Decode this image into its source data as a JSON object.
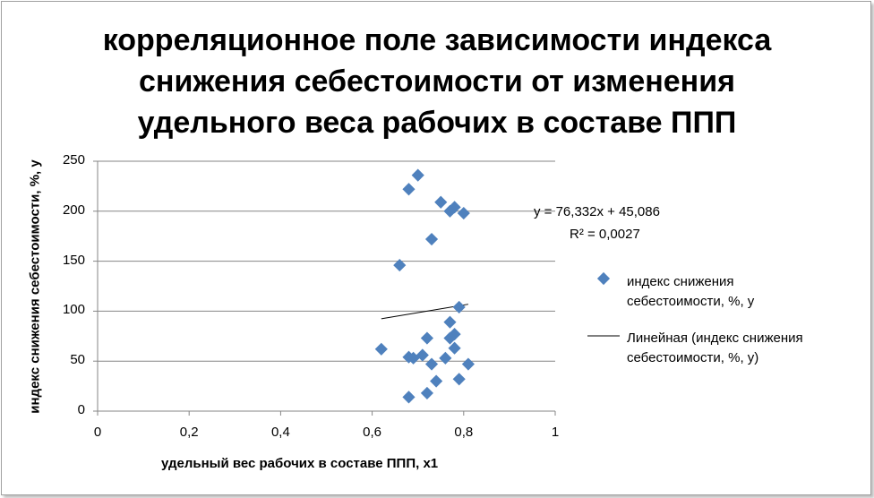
{
  "chart_data": {
    "type": "scatter",
    "title": "корреляционное поле зависимости индекса\nснижения себестоимости от изменения\nудельного веса рабочих в составе ППП",
    "xlabel": "удельный вес рабочих в составе ППП, х1",
    "ylabel": "индекс снижения себестоимости, %,  у",
    "xlim": [
      0,
      1
    ],
    "ylim": [
      0,
      250
    ],
    "x_ticks": [
      "0",
      "0,2",
      "0,4",
      "0,6",
      "0,8",
      "1"
    ],
    "y_ticks": [
      "0",
      "50",
      "100",
      "150",
      "200",
      "250"
    ],
    "grid": "horizontal",
    "legend_position": "right",
    "series": [
      {
        "name": "индекс снижения\nсебестоимости, %,  у",
        "marker": "diamond",
        "color": "#4f81bd",
        "points": [
          [
            0.7,
            236
          ],
          [
            0.68,
            222
          ],
          [
            0.75,
            209
          ],
          [
            0.78,
            204
          ],
          [
            0.77,
            200
          ],
          [
            0.8,
            198
          ],
          [
            0.73,
            172
          ],
          [
            0.66,
            146
          ],
          [
            0.79,
            104
          ],
          [
            0.77,
            89
          ],
          [
            0.78,
            77
          ],
          [
            0.77,
            73
          ],
          [
            0.72,
            73
          ],
          [
            0.62,
            62
          ],
          [
            0.78,
            63
          ],
          [
            0.71,
            56
          ],
          [
            0.68,
            54
          ],
          [
            0.69,
            53
          ],
          [
            0.76,
            53
          ],
          [
            0.73,
            47
          ],
          [
            0.81,
            47
          ],
          [
            0.74,
            30
          ],
          [
            0.79,
            32
          ],
          [
            0.72,
            18
          ],
          [
            0.68,
            14
          ]
        ]
      },
      {
        "name": "Линейная (индекс снижения\nсебестоимости, %,  у)",
        "type": "trendline",
        "color": "#000000",
        "x_range": [
          0.62,
          0.81
        ]
      }
    ],
    "trendline": {
      "slope": 76.332,
      "intercept": 45.086,
      "equation": "y = 76,332x + 45,086",
      "r2": "R² = 0,0027"
    }
  }
}
